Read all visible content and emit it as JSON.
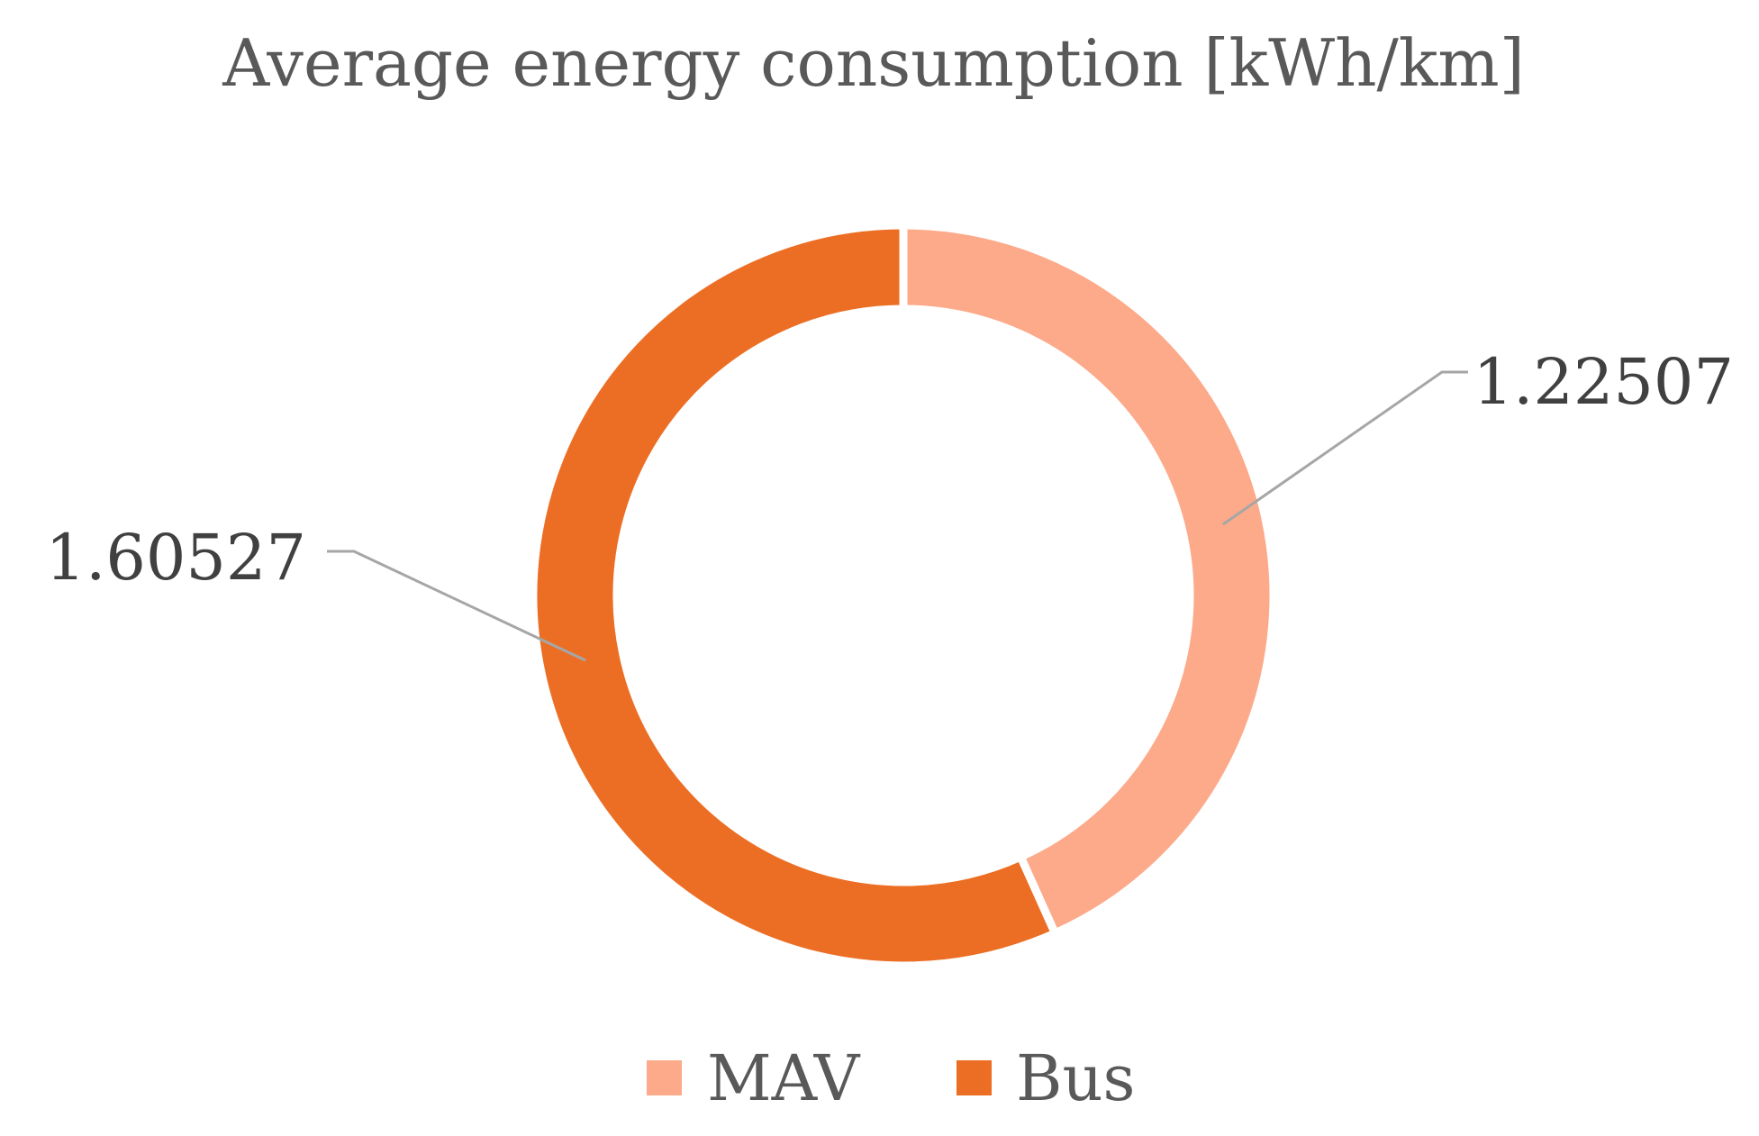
{
  "chart_data": {
    "type": "pie",
    "variant": "doughnut",
    "title": "Average energy consumption [kWh/km]",
    "categories": [
      "MAV",
      "Bus"
    ],
    "values": [
      1.22507,
      1.60527
    ],
    "data_labels": [
      "1.22507",
      "1.60527"
    ],
    "colors": [
      "#FCAA8A",
      "#EC6E24"
    ],
    "legend": {
      "position": "bottom",
      "entries": [
        "MAV",
        "Bus"
      ]
    },
    "start_angle_deg": 0,
    "direction": "clockwise",
    "grid": false
  }
}
